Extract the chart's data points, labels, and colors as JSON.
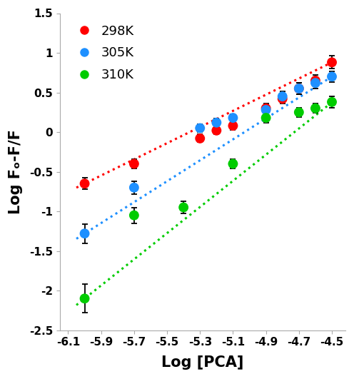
{
  "title": "",
  "xlabel": "Log [PCA]",
  "ylabel": "Log Fₒ-F/F",
  "xlim": [
    -6.15,
    -4.42
  ],
  "ylim": [
    -2.5,
    1.5
  ],
  "xticks": [
    -6.1,
    -5.9,
    -5.7,
    -5.5,
    -5.3,
    -5.1,
    -4.9,
    -4.7,
    -4.5
  ],
  "yticks": [
    -2.5,
    -2.0,
    -1.5,
    -1.0,
    -0.5,
    0.0,
    0.5,
    1.0,
    1.5
  ],
  "series": [
    {
      "label": "298K",
      "color": "#ff0000",
      "x": [
        -6.0,
        -5.7,
        -5.3,
        -5.2,
        -5.1,
        -4.9,
        -4.8,
        -4.7,
        -4.6,
        -4.5
      ],
      "y": [
        -0.65,
        -0.4,
        -0.08,
        0.02,
        0.08,
        0.3,
        0.42,
        0.55,
        0.65,
        0.88
      ],
      "yerr": [
        0.07,
        0.06,
        0.05,
        0.05,
        0.05,
        0.06,
        0.06,
        0.07,
        0.07,
        0.08
      ],
      "fit_x": [
        -6.05,
        -4.48
      ],
      "fit_slope": 1.02,
      "fit_intercept": 5.47
    },
    {
      "label": "305K",
      "color": "#1e90ff",
      "x": [
        -6.0,
        -5.7,
        -5.3,
        -5.2,
        -5.1,
        -4.9,
        -4.8,
        -4.7,
        -4.6,
        -4.5
      ],
      "y": [
        -1.28,
        -0.7,
        0.05,
        0.12,
        0.18,
        0.28,
        0.45,
        0.55,
        0.62,
        0.7
      ],
      "yerr": [
        0.12,
        0.08,
        0.05,
        0.05,
        0.05,
        0.06,
        0.06,
        0.07,
        0.07,
        0.07
      ],
      "fit_x": [
        -6.05,
        -4.48
      ],
      "fit_slope": 1.32,
      "fit_intercept": 6.64
    },
    {
      "label": "310K",
      "color": "#00cc00",
      "x": [
        -6.0,
        -5.7,
        -5.4,
        -5.1,
        -4.9,
        -4.7,
        -4.6,
        -4.5
      ],
      "y": [
        -2.1,
        -1.05,
        -0.95,
        -0.4,
        0.18,
        0.25,
        0.3,
        0.38
      ],
      "yerr": [
        0.18,
        0.1,
        0.08,
        0.06,
        0.06,
        0.06,
        0.06,
        0.07
      ],
      "fit_x": [
        -6.05,
        -4.48
      ],
      "fit_slope": 1.65,
      "fit_intercept": 7.8
    }
  ],
  "marker_size": 10,
  "linewidth": 2.2,
  "legend_fontsize": 13,
  "axis_label_fontsize": 15,
  "tick_fontsize": 11
}
